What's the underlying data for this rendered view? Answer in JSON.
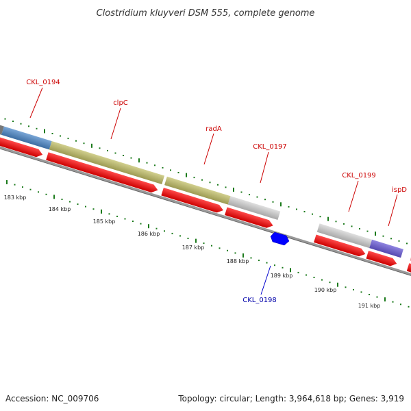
{
  "map": {
    "title": "Clostridium kluyveri DSM 555, complete genome",
    "accession": "Accession: NC_009706",
    "summary": "Topology: circular; Length: 3,964,618 bp; Genes: 3,919"
  },
  "genes": [
    {
      "name": "CKL_0194",
      "color": "#cc0000"
    },
    {
      "name": "clpC",
      "color": "#cc0000"
    },
    {
      "name": "radA",
      "color": "#cc0000"
    },
    {
      "name": "CKL_0197",
      "color": "#cc0000"
    },
    {
      "name": "CKL_0199",
      "color": "#cc0000"
    },
    {
      "name": "ispD",
      "color": "#cc0000"
    },
    {
      "name": "CKL_0198",
      "color": "#0000aa"
    }
  ],
  "ticks": [
    {
      "label": "183 kbp"
    },
    {
      "label": "184 kbp"
    },
    {
      "label": "185 kbp"
    },
    {
      "label": "186 kbp"
    },
    {
      "label": "187 kbp"
    },
    {
      "label": "188 kbp"
    },
    {
      "label": "189 kbp"
    },
    {
      "label": "190 kbp"
    },
    {
      "label": "191 kbp"
    }
  ],
  "colors": {
    "cds": "#ff0000",
    "cog_blue": "#4f81bd",
    "cog_olive": "#b5b36a",
    "cog_grey": "#c0c0c0",
    "cog_purple": "#6a5acd",
    "reverse_cds": "#0000ff",
    "backbone": "#888888",
    "gc_ticks": "#1b7a1b"
  }
}
